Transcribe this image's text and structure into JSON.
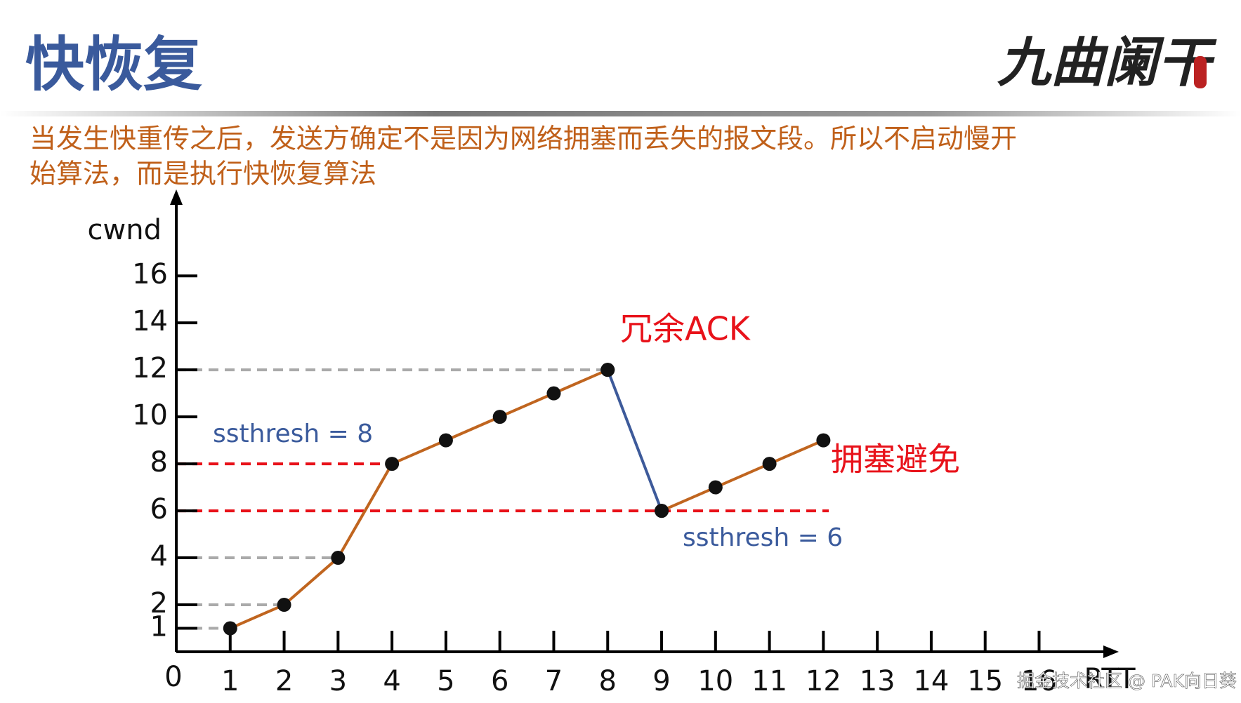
{
  "header": {
    "title": "快恢复",
    "logo": "九曲阑干"
  },
  "description": [
    "当发生快重传之后，发送方确定不是因为网络拥塞而丢失的报文段。所以不启动慢开",
    "始算法，而是执行快恢复算法"
  ],
  "annotations": [
    "冗余ACK",
    "拥塞避免",
    "ssthresh = 8",
    "ssthresh = 6"
  ],
  "watermark": "掘金技术社区 @ PAK向日葵",
  "chart_data": {
    "type": "line",
    "y_label": "cwnd",
    "x_label": "RTT",
    "xlim": [
      0,
      17.4
    ],
    "ylim": [
      0,
      19.5
    ],
    "xticks": [
      0,
      1,
      2,
      3,
      4,
      5,
      6,
      7,
      8,
      9,
      10,
      11,
      12,
      13,
      14,
      15,
      16
    ],
    "yticks": [
      1,
      2,
      4,
      6,
      8,
      10,
      12,
      14,
      16
    ],
    "series": [
      {
        "color": "#c0651f",
        "x": [
          1,
          2,
          3,
          4,
          5,
          6,
          7,
          8
        ],
        "values": [
          1,
          2,
          4,
          8,
          9,
          10,
          11,
          12
        ]
      },
      {
        "color": "#3d5a9a",
        "x": [
          8,
          9
        ],
        "values": [
          12,
          6
        ]
      },
      {
        "color": "#c0651f",
        "x": [
          9,
          10,
          11,
          12
        ],
        "values": [
          6,
          7,
          8,
          9
        ]
      }
    ],
    "reference_lines": [
      {
        "value": 1,
        "x_end": 1,
        "color": "#aaaaaa"
      },
      {
        "value": 2,
        "x_end": 2,
        "color": "#aaaaaa"
      },
      {
        "value": 4,
        "x_end": 3,
        "color": "#aaaaaa"
      },
      {
        "value": 12,
        "x_end": 8,
        "color": "#aaaaaa"
      },
      {
        "value": 8,
        "x_end": 4,
        "color": "#e8121a"
      },
      {
        "value": 6,
        "x_end": 12.1,
        "color": "#e8121a"
      }
    ]
  }
}
